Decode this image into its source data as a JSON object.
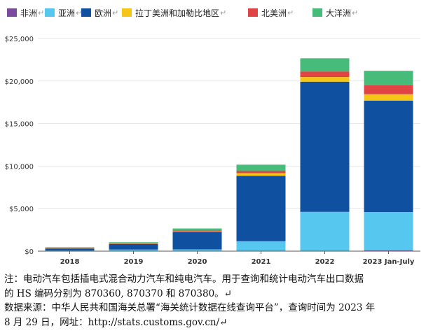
{
  "chart_data": {
    "type": "bar",
    "stacked": true,
    "categories": [
      "2018",
      "2019",
      "2020",
      "2021",
      "2022",
      "2023 Jan-July"
    ],
    "series": [
      {
        "name": "非洲",
        "color": "#7b4c9e",
        "values": [
          5,
          10,
          10,
          15,
          20,
          80
        ]
      },
      {
        "name": "亚洲",
        "color": "#56c8f0",
        "values": [
          60,
          180,
          200,
          1150,
          4600,
          4520
        ]
      },
      {
        "name": "欧洲",
        "color": "#1050a0",
        "values": [
          250,
          650,
          2050,
          7700,
          15300,
          13100
        ]
      },
      {
        "name": "拉丁美洲和加勒比地区",
        "color": "#f5c518",
        "values": [
          20,
          30,
          70,
          300,
          550,
          750
        ]
      },
      {
        "name": "北美洲",
        "color": "#e04444",
        "values": [
          40,
          60,
          120,
          250,
          650,
          1050
        ]
      },
      {
        "name": "大洋洲",
        "color": "#47bb7a",
        "values": [
          80,
          120,
          220,
          750,
          1550,
          1700
        ]
      }
    ],
    "ylim": [
      0,
      25000
    ],
    "yticks": [
      0,
      5000,
      10000,
      15000,
      20000,
      25000
    ],
    "ytick_labels": [
      "$0",
      "$5,000",
      "$10,000",
      "$15,000",
      "$20,000",
      "$25,000"
    ],
    "xlabel": "",
    "ylabel": "",
    "grid": true,
    "legend_position": "top",
    "legend_suffix": "↵"
  },
  "notes": {
    "line1": "注：电动汽车包括插电式混合动力汽车和纯电汽车。用于查询和统计电动汽车出口数据",
    "line2": "的 HS 编码分别为 870360, 870370 和 870380。↵",
    "line3": "数据来源：中华人民共和国海关总署“海关统计数据在线查询平台”，查询时间为 2023 年",
    "line4": "8 月 29 日，网址：http://stats.customs.gov.cn/↵"
  }
}
